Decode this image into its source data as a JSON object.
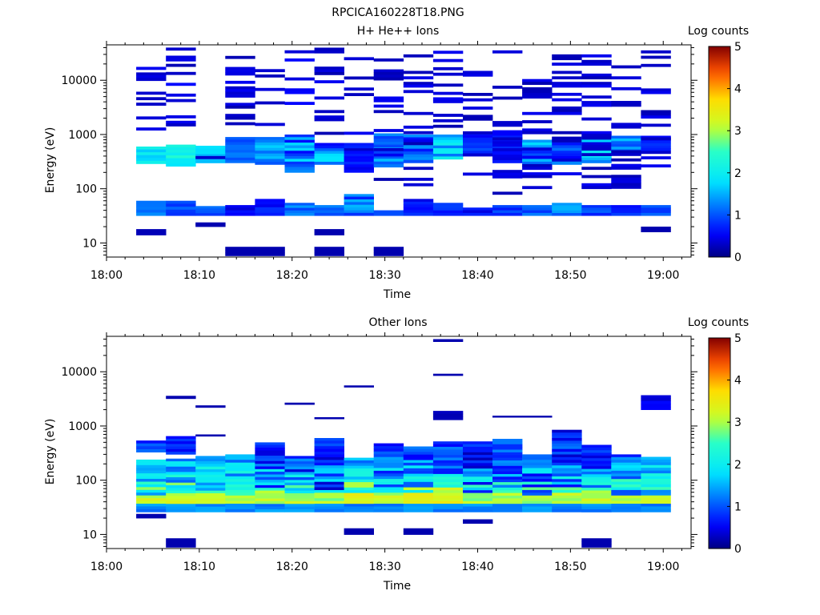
{
  "figure_title": "RPCICA160228T18.PNG",
  "colorbar": {
    "label": "Log counts",
    "ticks": [
      "0",
      "1",
      "2",
      "3",
      "4",
      "5"
    ],
    "range": [
      0,
      5
    ]
  },
  "x_ticks": [
    "18:00",
    "18:10",
    "18:20",
    "18:30",
    "18:40",
    "18:50",
    "19:00"
  ],
  "y_ticks": [
    "10",
    "100",
    "1000",
    "10000"
  ],
  "chart_data": [
    {
      "type": "heatmap",
      "title": "H+ He++ Ions",
      "xlabel": "Time",
      "ylabel": "Energy (eV)",
      "x_range_min": [
        0,
        63
      ],
      "y_range_eV": [
        5.5,
        45000
      ],
      "y_scale": "log",
      "columns_start_min": [
        3.2,
        6.4,
        9.6,
        12.8,
        16.0,
        19.2,
        22.4,
        25.6,
        28.8,
        32.0,
        35.2,
        38.4,
        41.6,
        44.8,
        48.0,
        51.2,
        54.4,
        57.6
      ],
      "column_width_min": 3.2,
      "bands": [
        {
          "col": 0,
          "e": [
            32,
            60
          ],
          "v": [
            1.1,
            1.4
          ]
        },
        {
          "col": 0,
          "e": [
            290,
            600
          ],
          "v": [
            1.6,
            2.2
          ]
        },
        {
          "col": 0,
          "e": [
            14,
            18
          ],
          "v": [
            0.2,
            0.3
          ]
        },
        {
          "col": 0,
          "e": [
            1200,
            40000
          ],
          "v": [
            0.2,
            0.6
          ],
          "sparse": true
        },
        {
          "col": 1,
          "e": [
            32,
            60
          ],
          "v": [
            0.8,
            1.2
          ]
        },
        {
          "col": 1,
          "e": [
            260,
            650
          ],
          "v": [
            1.8,
            2.4
          ]
        },
        {
          "col": 1,
          "e": [
            900,
            45000
          ],
          "v": [
            0.2,
            0.6
          ],
          "sparse": true
        },
        {
          "col": 2,
          "e": [
            32,
            48
          ],
          "v": [
            0.8,
            1.2
          ]
        },
        {
          "col": 2,
          "e": [
            300,
            620
          ],
          "v": [
            1.4,
            1.9
          ]
        },
        {
          "col": 2,
          "e": [
            20,
            24
          ],
          "v": [
            0.2,
            0.3
          ]
        },
        {
          "col": 2,
          "e": [
            140,
            400
          ],
          "v": [
            0.3,
            0.6
          ],
          "sparse": true
        },
        {
          "col": 3,
          "e": [
            32,
            50
          ],
          "v": [
            0.3,
            0.8
          ]
        },
        {
          "col": 3,
          "e": [
            300,
            900
          ],
          "v": [
            0.8,
            1.5
          ]
        },
        {
          "col": 3,
          "e": [
            5.8,
            8.5
          ],
          "v": [
            0.2,
            0.2
          ]
        },
        {
          "col": 3,
          "e": [
            1500,
            40000
          ],
          "v": [
            0.2,
            0.5
          ],
          "sparse": true
        },
        {
          "col": 4,
          "e": [
            32,
            65
          ],
          "v": [
            0.4,
            1.0
          ]
        },
        {
          "col": 4,
          "e": [
            280,
            900
          ],
          "v": [
            1.0,
            1.7
          ]
        },
        {
          "col": 4,
          "e": [
            5.8,
            8.5
          ],
          "v": [
            0.2,
            0.2
          ]
        },
        {
          "col": 4,
          "e": [
            1300,
            45000
          ],
          "v": [
            0.2,
            0.5
          ],
          "sparse": true
        },
        {
          "col": 5,
          "e": [
            32,
            55
          ],
          "v": [
            0.9,
            1.4
          ]
        },
        {
          "col": 5,
          "e": [
            200,
            1000
          ],
          "v": [
            0.5,
            1.8
          ]
        },
        {
          "col": 5,
          "e": [
            2000,
            45000
          ],
          "v": [
            0.2,
            0.6
          ],
          "sparse": true
        },
        {
          "col": 6,
          "e": [
            32,
            50
          ],
          "v": [
            0.9,
            1.3
          ]
        },
        {
          "col": 6,
          "e": [
            280,
            700
          ],
          "v": [
            0.5,
            2.0
          ]
        },
        {
          "col": 6,
          "e": [
            14,
            18
          ],
          "v": [
            0.2,
            0.2
          ]
        },
        {
          "col": 6,
          "e": [
            5.8,
            8.5
          ],
          "v": [
            0.2,
            0.2
          ]
        },
        {
          "col": 6,
          "e": [
            1000,
            40000
          ],
          "v": [
            0.2,
            0.5
          ],
          "sparse": true
        },
        {
          "col": 7,
          "e": [
            32,
            80
          ],
          "v": [
            0.5,
            1.6
          ]
        },
        {
          "col": 7,
          "e": [
            200,
            700
          ],
          "v": [
            0.3,
            0.8
          ]
        },
        {
          "col": 7,
          "e": [
            1000,
            30000
          ],
          "v": [
            0.2,
            0.5
          ],
          "sparse": true
        },
        {
          "col": 8,
          "e": [
            32,
            40
          ],
          "v": [
            0.9,
            1.1
          ]
        },
        {
          "col": 8,
          "e": [
            250,
            1050
          ],
          "v": [
            0.9,
            1.7
          ]
        },
        {
          "col": 8,
          "e": [
            5.8,
            8.5
          ],
          "v": [
            0.2,
            0.2
          ]
        },
        {
          "col": 8,
          "e": [
            100,
            40000
          ],
          "v": [
            0.2,
            0.5
          ],
          "sparse": true
        },
        {
          "col": 9,
          "e": [
            32,
            65
          ],
          "v": [
            0.4,
            1.2
          ]
        },
        {
          "col": 9,
          "e": [
            300,
            1000
          ],
          "v": [
            0.6,
            1.4
          ]
        },
        {
          "col": 9,
          "e": [
            100,
            30000
          ],
          "v": [
            0.2,
            0.5
          ],
          "sparse": true
        },
        {
          "col": 10,
          "e": [
            32,
            55
          ],
          "v": [
            0.5,
            0.9
          ]
        },
        {
          "col": 10,
          "e": [
            350,
            1000
          ],
          "v": [
            0.9,
            2.2
          ]
        },
        {
          "col": 10,
          "e": [
            1200,
            35000
          ],
          "v": [
            0.2,
            0.5
          ],
          "sparse": true
        },
        {
          "col": 11,
          "e": [
            32,
            45
          ],
          "v": [
            0.4,
            0.8
          ]
        },
        {
          "col": 11,
          "e": [
            400,
            1100
          ],
          "v": [
            0.4,
            1.0
          ]
        },
        {
          "col": 11,
          "e": [
            140,
            30000
          ],
          "v": [
            0.2,
            0.5
          ],
          "sparse": true
        },
        {
          "col": 12,
          "e": [
            32,
            50
          ],
          "v": [
            0.6,
            1.0
          ]
        },
        {
          "col": 12,
          "e": [
            300,
            1200
          ],
          "v": [
            0.4,
            0.8
          ]
        },
        {
          "col": 12,
          "e": [
            70,
            40000
          ],
          "v": [
            0.2,
            0.5
          ],
          "sparse": true
        },
        {
          "col": 13,
          "e": [
            32,
            50
          ],
          "v": [
            0.8,
            1.3
          ]
        },
        {
          "col": 13,
          "e": [
            250,
            800
          ],
          "v": [
            0.6,
            1.9
          ]
        },
        {
          "col": 13,
          "e": [
            100,
            30000
          ],
          "v": [
            0.2,
            0.5
          ],
          "sparse": true
        },
        {
          "col": 14,
          "e": [
            32,
            55
          ],
          "v": [
            1.0,
            1.6
          ]
        },
        {
          "col": 14,
          "e": [
            280,
            800
          ],
          "v": [
            0.5,
            1.6
          ]
        },
        {
          "col": 14,
          "e": [
            100,
            30000
          ],
          "v": [
            0.2,
            0.5
          ],
          "sparse": true
        },
        {
          "col": 15,
          "e": [
            32,
            50
          ],
          "v": [
            0.7,
            1.1
          ]
        },
        {
          "col": 15,
          "e": [
            300,
            950
          ],
          "v": [
            1.2,
            2.0
          ]
        },
        {
          "col": 15,
          "e": [
            100,
            30000
          ],
          "v": [
            0.2,
            0.5
          ],
          "sparse": true
        },
        {
          "col": 16,
          "e": [
            32,
            50
          ],
          "v": [
            0.6,
            1.0
          ]
        },
        {
          "col": 16,
          "e": [
            420,
            950
          ],
          "v": [
            0.8,
            1.7
          ]
        },
        {
          "col": 16,
          "e": [
            80,
            30000
          ],
          "v": [
            0.2,
            0.5
          ],
          "sparse": true
        },
        {
          "col": 17,
          "e": [
            32,
            50
          ],
          "v": [
            0.8,
            1.1
          ]
        },
        {
          "col": 17,
          "e": [
            500,
            950
          ],
          "v": [
            0.5,
            1.0
          ]
        },
        {
          "col": 17,
          "e": [
            16,
            20
          ],
          "v": [
            0.2,
            0.2
          ]
        },
        {
          "col": 17,
          "e": [
            250,
            40000
          ],
          "v": [
            0.2,
            0.5
          ],
          "sparse": true
        }
      ]
    },
    {
      "type": "heatmap",
      "title": "Other Ions",
      "xlabel": "Time",
      "ylabel": "Energy (eV)",
      "x_range_min": [
        0,
        63
      ],
      "y_range_eV": [
        5.5,
        45000
      ],
      "y_scale": "log",
      "columns_start_min": [
        3.2,
        6.4,
        9.6,
        12.8,
        16.0,
        19.2,
        22.4,
        25.6,
        28.8,
        32.0,
        35.2,
        38.4,
        41.6,
        44.8,
        48.0,
        51.2,
        54.4,
        57.6
      ],
      "column_width_min": 3.2,
      "bands": [
        {
          "col": 0,
          "e": [
            26,
            240
          ],
          "v": [
            1.2,
            3.4
          ],
          "peak": [
            35,
            55
          ]
        },
        {
          "col": 0,
          "e": [
            330,
            540
          ],
          "v": [
            0.6,
            1.2
          ]
        },
        {
          "col": 0,
          "e": [
            20,
            24
          ],
          "v": [
            0.2,
            0.2
          ]
        },
        {
          "col": 1,
          "e": [
            26,
            250
          ],
          "v": [
            1.0,
            3.4
          ],
          "peak": [
            35,
            55
          ]
        },
        {
          "col": 1,
          "e": [
            300,
            650
          ],
          "v": [
            0.4,
            0.9
          ]
        },
        {
          "col": 1,
          "e": [
            5.8,
            8.5
          ],
          "v": [
            0.2,
            0.2
          ]
        },
        {
          "col": 1,
          "e": [
            3200,
            3600
          ],
          "v": [
            0.2,
            0.2
          ]
        },
        {
          "col": 2,
          "e": [
            26,
            280
          ],
          "v": [
            1.2,
            3.3
          ],
          "peak": [
            35,
            55
          ]
        },
        {
          "col": 2,
          "e": [
            650,
            700
          ],
          "v": [
            0.2,
            0.2
          ]
        },
        {
          "col": 2,
          "e": [
            2200,
            2400
          ],
          "v": [
            0.2,
            0.2
          ]
        },
        {
          "col": 3,
          "e": [
            26,
            300
          ],
          "v": [
            1.0,
            3.3
          ],
          "peak": [
            35,
            55
          ]
        },
        {
          "col": 4,
          "e": [
            26,
            500
          ],
          "v": [
            0.4,
            3.3
          ],
          "peak": [
            35,
            55
          ]
        },
        {
          "col": 5,
          "e": [
            26,
            280
          ],
          "v": [
            0.3,
            3.3
          ],
          "peak": [
            35,
            55
          ]
        },
        {
          "col": 5,
          "e": [
            2500,
            2700
          ],
          "v": [
            0.2,
            0.2
          ]
        },
        {
          "col": 6,
          "e": [
            26,
            600
          ],
          "v": [
            0.3,
            3.2
          ],
          "peak": [
            35,
            55
          ]
        },
        {
          "col": 6,
          "e": [
            1350,
            1450
          ],
          "v": [
            0.2,
            0.2
          ]
        },
        {
          "col": 7,
          "e": [
            26,
            260
          ],
          "v": [
            1.0,
            3.6
          ],
          "peak": [
            35,
            55
          ]
        },
        {
          "col": 7,
          "e": [
            10,
            13
          ],
          "v": [
            0.2,
            0.2
          ]
        },
        {
          "col": 7,
          "e": [
            5200,
            5600
          ],
          "v": [
            0.2,
            0.2
          ]
        },
        {
          "col": 8,
          "e": [
            26,
            480
          ],
          "v": [
            0.5,
            3.3
          ],
          "peak": [
            35,
            55
          ]
        },
        {
          "col": 9,
          "e": [
            26,
            420
          ],
          "v": [
            0.5,
            3.5
          ],
          "peak": [
            35,
            55
          ]
        },
        {
          "col": 9,
          "e": [
            10,
            13
          ],
          "v": [
            0.2,
            0.2
          ]
        },
        {
          "col": 10,
          "e": [
            26,
            520
          ],
          "v": [
            0.5,
            3.6
          ],
          "peak": [
            35,
            55
          ]
        },
        {
          "col": 10,
          "e": [
            1300,
            1900
          ],
          "v": [
            0.2,
            0.3
          ]
        },
        {
          "col": 10,
          "e": [
            8500,
            9200
          ],
          "v": [
            0.2,
            0.2
          ]
        },
        {
          "col": 10,
          "e": [
            36000,
            40000
          ],
          "v": [
            0.2,
            0.2
          ]
        },
        {
          "col": 11,
          "e": [
            26,
            520
          ],
          "v": [
            0.2,
            3.2
          ],
          "peak": [
            35,
            55
          ]
        },
        {
          "col": 11,
          "e": [
            16,
            19
          ],
          "v": [
            0.2,
            0.2
          ]
        },
        {
          "col": 12,
          "e": [
            26,
            580
          ],
          "v": [
            0.6,
            3.2
          ],
          "peak": [
            35,
            55
          ]
        },
        {
          "col": 12,
          "e": [
            1450,
            1550
          ],
          "v": [
            0.2,
            0.2
          ]
        },
        {
          "col": 13,
          "e": [
            26,
            300
          ],
          "v": [
            0.5,
            3.2
          ],
          "peak": [
            35,
            55
          ]
        },
        {
          "col": 13,
          "e": [
            1450,
            1550
          ],
          "v": [
            0.2,
            0.2
          ]
        },
        {
          "col": 14,
          "e": [
            26,
            850
          ],
          "v": [
            0.3,
            3.3
          ],
          "peak": [
            35,
            55
          ]
        },
        {
          "col": 15,
          "e": [
            26,
            450
          ],
          "v": [
            0.3,
            3.3
          ],
          "peak": [
            35,
            55
          ]
        },
        {
          "col": 15,
          "e": [
            5.8,
            8.5
          ],
          "v": [
            0.2,
            0.2
          ]
        },
        {
          "col": 16,
          "e": [
            26,
            300
          ],
          "v": [
            0.5,
            3.3
          ],
          "peak": [
            35,
            55
          ]
        },
        {
          "col": 17,
          "e": [
            26,
            270
          ],
          "v": [
            1.2,
            3.3
          ],
          "peak": [
            35,
            55
          ]
        },
        {
          "col": 17,
          "e": [
            2000,
            3700
          ],
          "v": [
            0.3,
            0.6
          ]
        }
      ]
    }
  ]
}
